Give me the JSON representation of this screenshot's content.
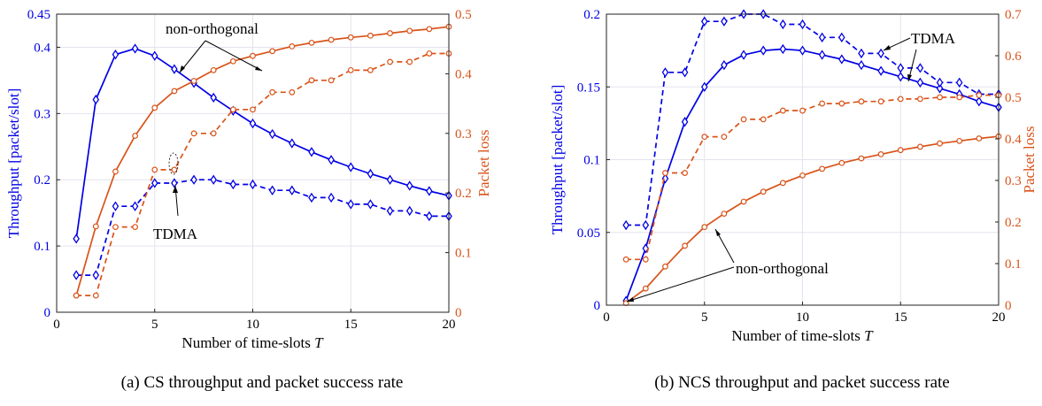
{
  "colors": {
    "throughput": "#0000e6",
    "loss": "#d95319",
    "grid": "#e3e3ee",
    "frame": "#222222"
  },
  "chart_data": [
    {
      "type": "line",
      "caption": "(a) CS throughput and packet success rate",
      "xlabel": "Number of time-slots",
      "xlabel_var": "T",
      "ylabel_left": "Throughput [packet/slot]",
      "ylabel_right": "Packet loss",
      "xlim": [
        0,
        20
      ],
      "ylim_left": [
        0,
        0.45
      ],
      "ylim_right": [
        0,
        0.5
      ],
      "xticks": [
        0,
        5,
        10,
        15,
        20
      ],
      "yticks_left": [
        0,
        0.1,
        0.2,
        0.3,
        0.4,
        0.45
      ],
      "yticks_right": [
        0,
        0.1,
        0.2,
        0.3,
        0.4,
        0.5
      ],
      "grid": true,
      "annotations": [
        "non-orthogonal",
        "TDMA"
      ],
      "series": [
        {
          "axis": "left",
          "style": "solid",
          "marker": "diamond",
          "x": [
            1,
            2,
            3,
            4,
            5,
            6,
            7,
            8,
            9,
            10,
            11,
            12,
            13,
            14,
            15,
            16,
            17,
            18,
            19,
            20
          ],
          "y": [
            0.111,
            0.321,
            0.389,
            0.398,
            0.387,
            0.367,
            0.346,
            0.324,
            0.304,
            0.285,
            0.269,
            0.255,
            0.242,
            0.23,
            0.219,
            0.209,
            0.2,
            0.191,
            0.183,
            0.176
          ]
        },
        {
          "axis": "left",
          "style": "dashed",
          "marker": "diamond",
          "x": [
            1,
            2,
            3,
            4,
            5,
            6,
            7,
            8,
            9,
            10,
            11,
            12,
            13,
            14,
            15,
            16,
            17,
            18,
            19,
            20
          ],
          "y": [
            0.056,
            0.056,
            0.16,
            0.16,
            0.195,
            0.195,
            0.2,
            0.2,
            0.193,
            0.193,
            0.184,
            0.184,
            0.173,
            0.173,
            0.163,
            0.163,
            0.153,
            0.153,
            0.145,
            0.145
          ]
        },
        {
          "axis": "right",
          "style": "solid",
          "marker": "circle",
          "x": [
            1,
            2,
            3,
            4,
            5,
            6,
            7,
            8,
            9,
            10,
            11,
            12,
            13,
            14,
            15,
            16,
            17,
            18,
            19,
            20
          ],
          "y": [
            0.028,
            0.144,
            0.236,
            0.296,
            0.343,
            0.371,
            0.388,
            0.406,
            0.421,
            0.43,
            0.438,
            0.446,
            0.452,
            0.457,
            0.461,
            0.464,
            0.468,
            0.472,
            0.475,
            0.479
          ]
        },
        {
          "axis": "right",
          "style": "dashed",
          "marker": "circle",
          "x": [
            1,
            2,
            3,
            4,
            5,
            6,
            7,
            8,
            9,
            10,
            11,
            12,
            13,
            14,
            15,
            16,
            17,
            18,
            19,
            20
          ],
          "y": [
            0.028,
            0.028,
            0.143,
            0.143,
            0.239,
            0.239,
            0.3,
            0.3,
            0.34,
            0.34,
            0.369,
            0.369,
            0.389,
            0.389,
            0.406,
            0.406,
            0.42,
            0.42,
            0.434,
            0.434
          ]
        }
      ]
    },
    {
      "type": "line",
      "caption": "(b) NCS throughput and packet success rate",
      "xlabel": "Number of time-slots",
      "xlabel_var": "T",
      "ylabel_left": "Throughput [packet/slot]",
      "ylabel_right": "Packet loss",
      "xlim": [
        0,
        20
      ],
      "ylim_left": [
        0,
        0.2
      ],
      "ylim_right": [
        0,
        0.7
      ],
      "xticks": [
        0,
        5,
        10,
        15,
        20
      ],
      "yticks_left": [
        0,
        0.05,
        0.1,
        0.15,
        0.2
      ],
      "yticks_right": [
        0,
        0.1,
        0.2,
        0.3,
        0.4,
        0.5,
        0.6,
        0.7
      ],
      "grid": true,
      "annotations": [
        "TDMA",
        "non-orthogonal"
      ],
      "series": [
        {
          "axis": "left",
          "style": "solid",
          "marker": "diamond",
          "x": [
            1,
            2,
            3,
            4,
            5,
            6,
            7,
            8,
            9,
            10,
            11,
            12,
            13,
            14,
            15,
            16,
            17,
            18,
            19,
            20
          ],
          "y": [
            0.003,
            0.039,
            0.087,
            0.126,
            0.15,
            0.165,
            0.172,
            0.175,
            0.176,
            0.175,
            0.172,
            0.169,
            0.165,
            0.161,
            0.157,
            0.153,
            0.149,
            0.145,
            0.14,
            0.136
          ]
        },
        {
          "axis": "left",
          "style": "dashed",
          "marker": "diamond",
          "x": [
            1,
            2,
            3,
            4,
            5,
            6,
            7,
            8,
            9,
            10,
            11,
            12,
            13,
            14,
            15,
            16,
            17,
            18,
            19,
            20
          ],
          "y": [
            0.055,
            0.055,
            0.16,
            0.16,
            0.195,
            0.195,
            0.2,
            0.2,
            0.193,
            0.193,
            0.184,
            0.184,
            0.173,
            0.173,
            0.163,
            0.163,
            0.153,
            0.153,
            0.145,
            0.145
          ]
        },
        {
          "axis": "right",
          "style": "solid",
          "marker": "circle",
          "x": [
            1,
            2,
            3,
            4,
            5,
            6,
            7,
            8,
            9,
            10,
            11,
            12,
            13,
            14,
            15,
            16,
            17,
            18,
            19,
            20
          ],
          "y": [
            0.005,
            0.04,
            0.093,
            0.143,
            0.188,
            0.22,
            0.249,
            0.273,
            0.294,
            0.312,
            0.328,
            0.342,
            0.353,
            0.363,
            0.373,
            0.381,
            0.389,
            0.395,
            0.401,
            0.406
          ]
        },
        {
          "axis": "right",
          "style": "dashed",
          "marker": "circle",
          "x": [
            1,
            2,
            3,
            4,
            5,
            6,
            7,
            8,
            9,
            10,
            11,
            12,
            13,
            14,
            15,
            16,
            17,
            18,
            19,
            20
          ],
          "y": [
            0.11,
            0.11,
            0.318,
            0.318,
            0.405,
            0.405,
            0.447,
            0.447,
            0.468,
            0.468,
            0.485,
            0.485,
            0.49,
            0.49,
            0.496,
            0.496,
            0.5,
            0.5,
            0.505,
            0.505
          ]
        }
      ]
    }
  ]
}
